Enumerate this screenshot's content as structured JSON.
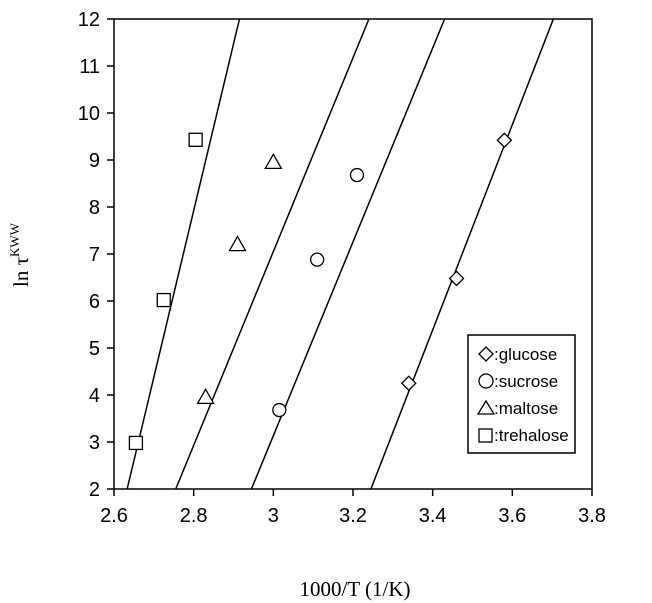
{
  "chart_data": {
    "type": "scatter",
    "title": "",
    "xlabel": "1000/T (1/K)",
    "ylabel_main": "ln τ",
    "ylabel_sup": "KWW",
    "xlim": [
      2.6,
      3.8
    ],
    "ylim": [
      2,
      12
    ],
    "x_ticks": [
      "2.6",
      "2.8",
      "3",
      "3.2",
      "3.4",
      "3.6",
      "3.8"
    ],
    "y_ticks": [
      "2",
      "3",
      "4",
      "5",
      "6",
      "7",
      "8",
      "9",
      "10",
      "11",
      "12"
    ],
    "grid": false,
    "legend_position": "bottom-right",
    "series": [
      {
        "name": ":glucose",
        "marker": "diamond",
        "points": [
          [
            3.34,
            4.25
          ],
          [
            3.46,
            6.48
          ],
          [
            3.58,
            9.42
          ]
        ],
        "fit_line": [
          [
            3.245,
            2.0
          ],
          [
            3.703,
            12.0
          ]
        ]
      },
      {
        "name": ":sucrose",
        "marker": "circle",
        "points": [
          [
            3.015,
            3.68
          ],
          [
            3.11,
            6.88
          ],
          [
            3.21,
            8.68
          ]
        ],
        "fit_line": [
          [
            2.945,
            2.0
          ],
          [
            3.43,
            12.0
          ]
        ]
      },
      {
        "name": ":maltose",
        "marker": "triangle",
        "points": [
          [
            2.83,
            3.95
          ],
          [
            2.91,
            7.2
          ],
          [
            3.0,
            8.95
          ]
        ],
        "fit_line": [
          [
            2.755,
            2.0
          ],
          [
            3.24,
            12.0
          ]
        ]
      },
      {
        "name": ":trehalose",
        "marker": "square",
        "points": [
          [
            2.655,
            2.98
          ],
          [
            2.725,
            6.02
          ],
          [
            2.805,
            9.43
          ]
        ],
        "fit_line": [
          [
            2.633,
            2.0
          ],
          [
            2.915,
            12.0
          ]
        ]
      }
    ]
  }
}
